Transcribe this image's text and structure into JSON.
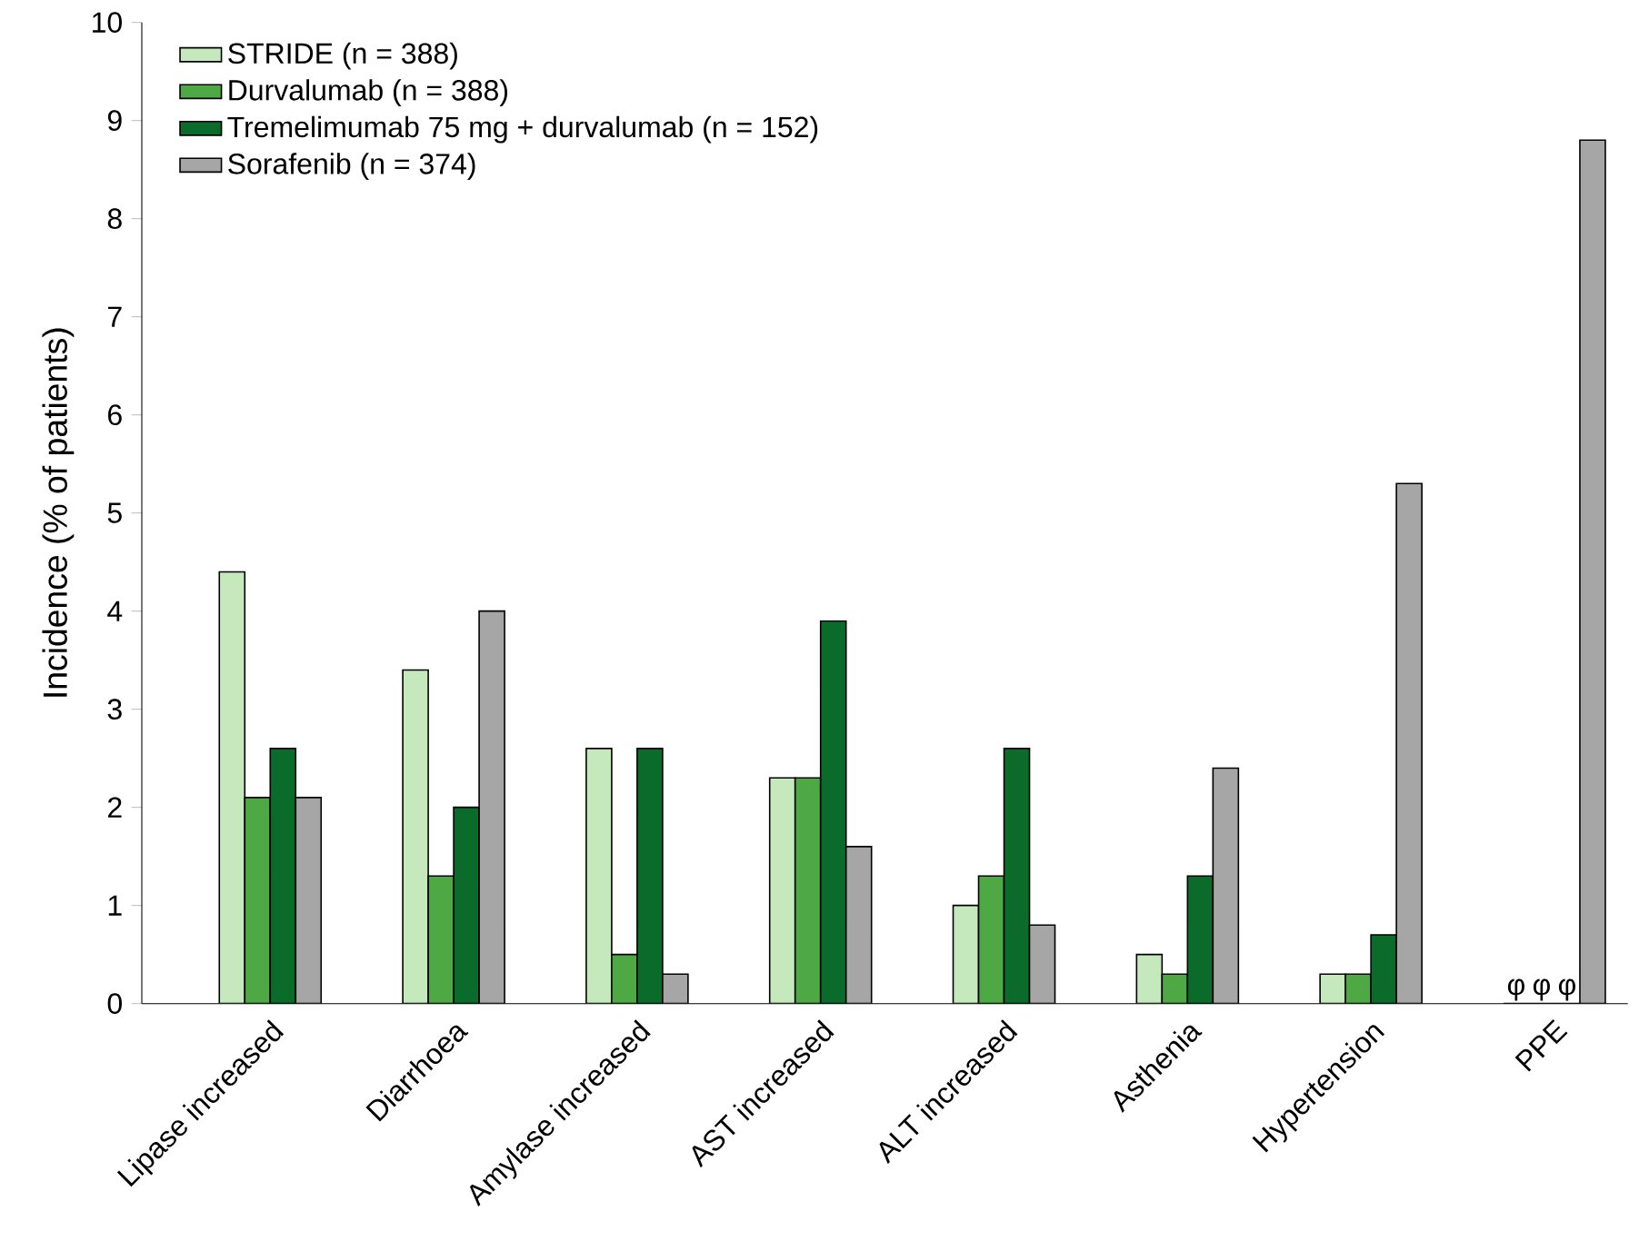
{
  "chart_data": {
    "type": "bar",
    "ylabel": "Incidence (% of patients)",
    "categories": [
      "Lipase increased",
      "Diarrhoea",
      "Amylase increased",
      "AST increased",
      "ALT increased",
      "Asthenia",
      "Hypertension",
      "PPE"
    ],
    "series": [
      {
        "name": "STRIDE (n = 388)",
        "color": "#c5e8bd",
        "values": [
          4.4,
          3.4,
          2.6,
          2.3,
          1.0,
          0.5,
          0.3,
          0
        ],
        "value_labels": [
          null,
          null,
          null,
          null,
          null,
          null,
          null,
          "φ"
        ]
      },
      {
        "name": "Durvalumab (n = 388)",
        "color": "#4ea944",
        "values": [
          2.1,
          1.3,
          0.5,
          2.3,
          1.3,
          0.3,
          0.3,
          0
        ],
        "value_labels": [
          null,
          null,
          null,
          null,
          null,
          null,
          null,
          "φ"
        ]
      },
      {
        "name": "Tremelimumab 75 mg + durvalumab (n = 152)",
        "color": "#0b6b2b",
        "values": [
          2.6,
          2.0,
          2.6,
          3.9,
          2.6,
          1.3,
          0.7,
          0
        ],
        "value_labels": [
          null,
          null,
          null,
          null,
          null,
          null,
          null,
          "φ"
        ]
      },
      {
        "name": "Sorafenib (n = 374)",
        "color": "#a6a6a6",
        "values": [
          2.1,
          4.0,
          0.3,
          1.6,
          0.8,
          2.4,
          5.3,
          8.8
        ]
      }
    ],
    "ylim": [
      0,
      10
    ],
    "yticks": [
      0,
      1,
      2,
      3,
      4,
      5,
      6,
      7,
      8,
      9,
      10
    ],
    "grid": false,
    "legend": "top left"
  }
}
